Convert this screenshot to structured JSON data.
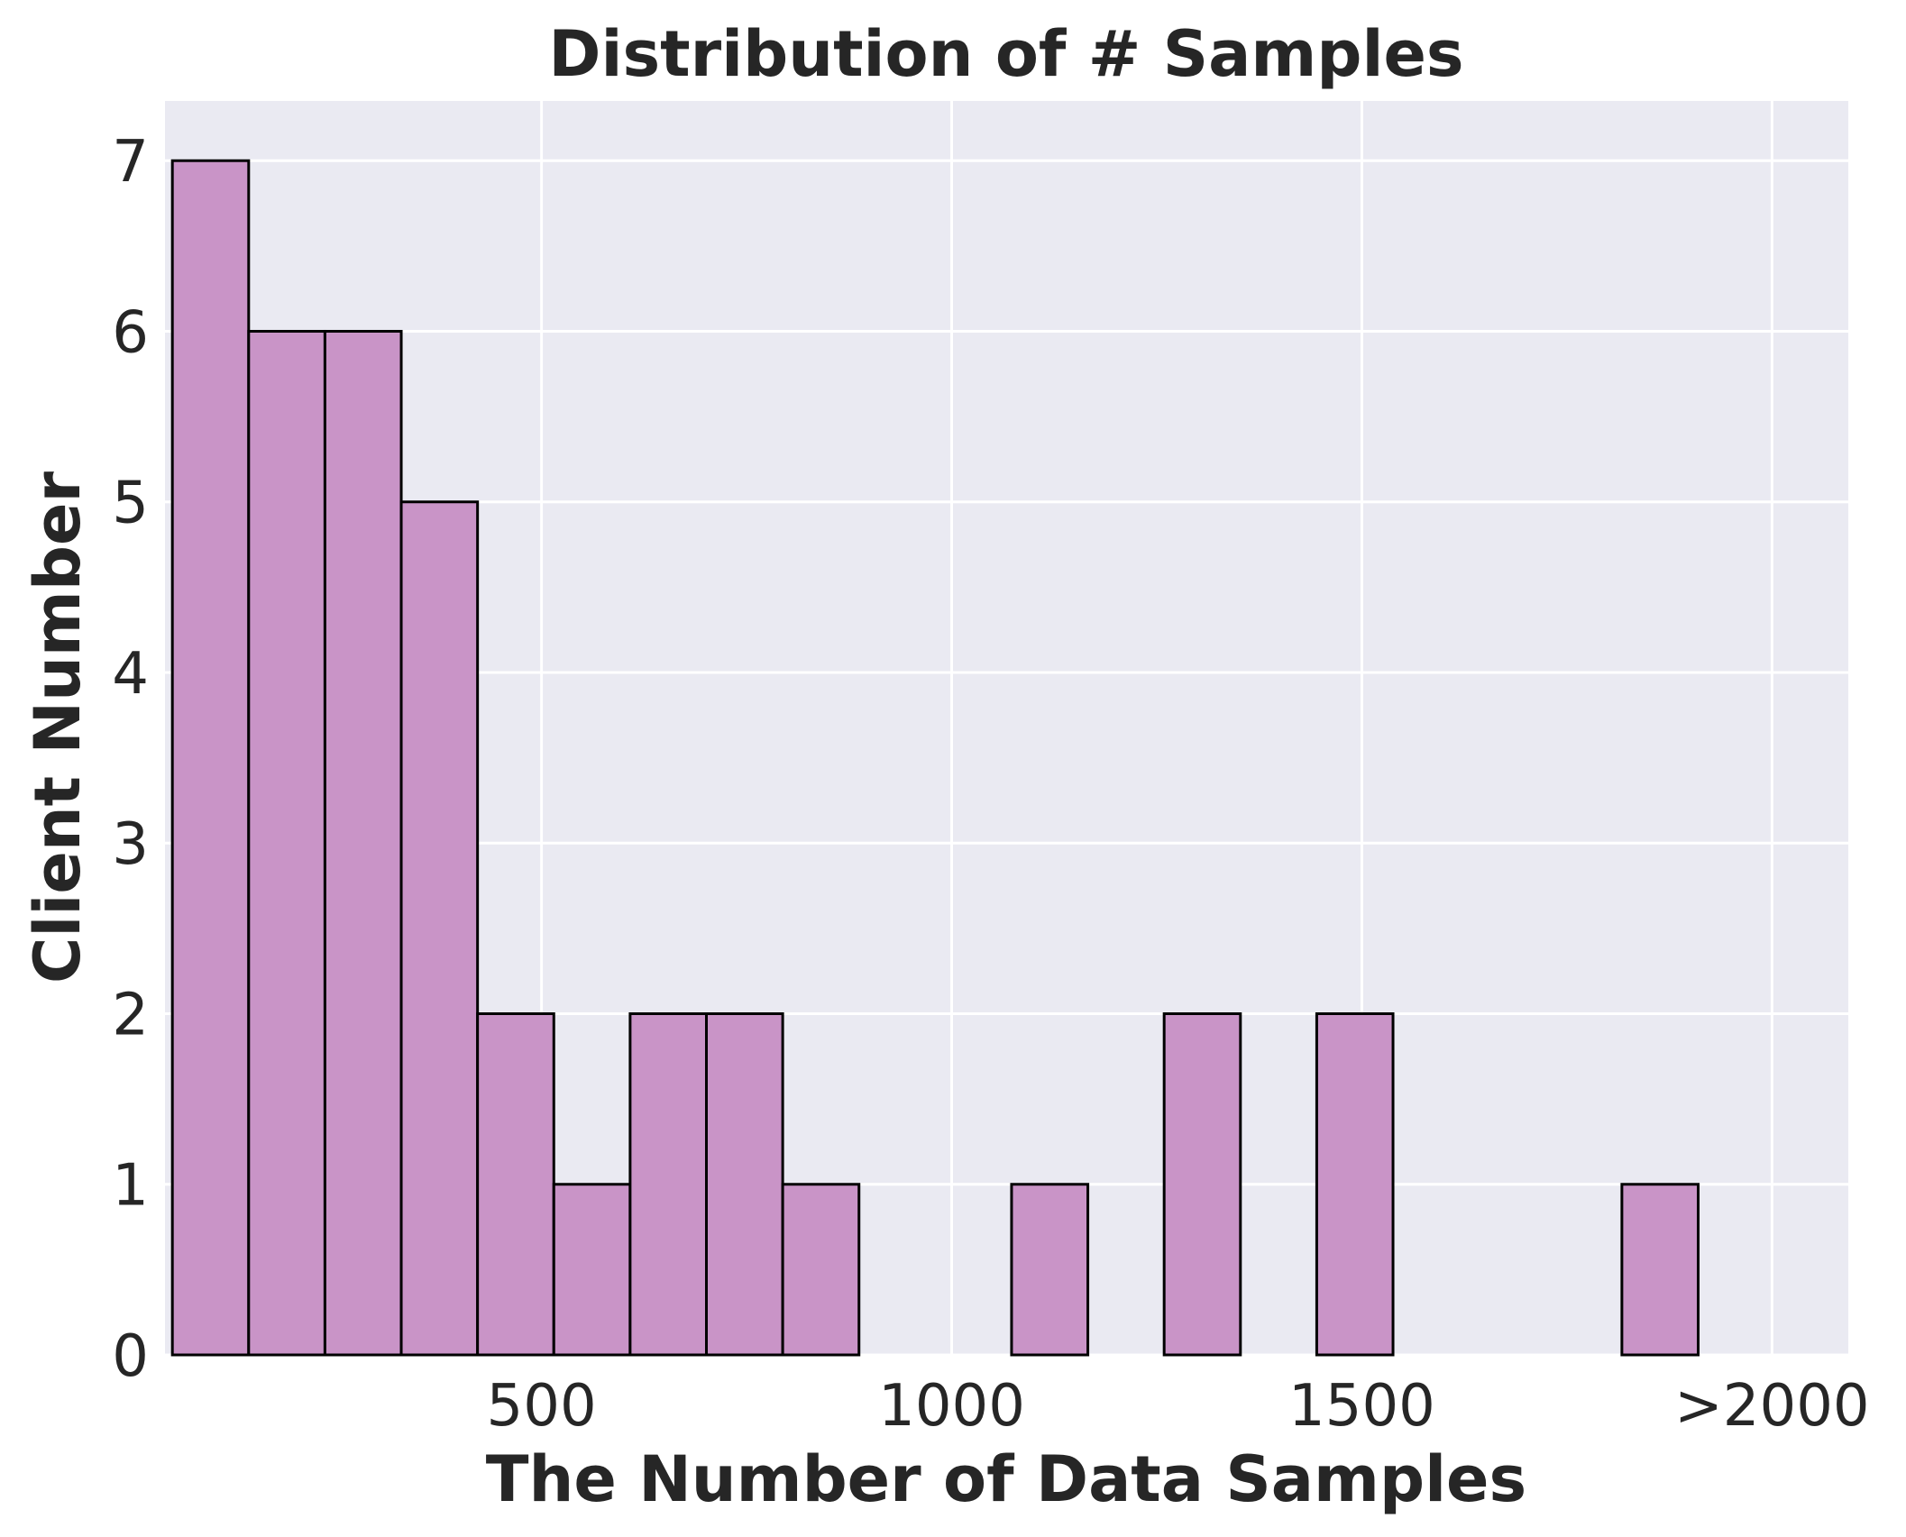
{
  "chart_data": {
    "type": "bar",
    "title": "Distribution of # Samples",
    "xlabel": "The Number of Data Samples",
    "ylabel": "Client Number",
    "bin_width": 93,
    "bins": [
      {
        "start": 50,
        "end": 143,
        "count": 7
      },
      {
        "start": 143,
        "end": 236,
        "count": 6
      },
      {
        "start": 236,
        "end": 329,
        "count": 6
      },
      {
        "start": 329,
        "end": 422,
        "count": 5
      },
      {
        "start": 422,
        "end": 515,
        "count": 2
      },
      {
        "start": 515,
        "end": 608,
        "count": 1
      },
      {
        "start": 608,
        "end": 701,
        "count": 2
      },
      {
        "start": 701,
        "end": 794,
        "count": 2
      },
      {
        "start": 794,
        "end": 887,
        "count": 1
      },
      {
        "start": 887,
        "end": 980,
        "count": 0
      },
      {
        "start": 980,
        "end": 1073,
        "count": 0
      },
      {
        "start": 1073,
        "end": 1166,
        "count": 1
      },
      {
        "start": 1166,
        "end": 1259,
        "count": 0
      },
      {
        "start": 1259,
        "end": 1352,
        "count": 2
      },
      {
        "start": 1352,
        "end": 1445,
        "count": 0
      },
      {
        "start": 1445,
        "end": 1538,
        "count": 2
      },
      {
        "start": 1538,
        "end": 1631,
        "count": 0
      },
      {
        "start": 1631,
        "end": 1724,
        "count": 0
      },
      {
        "start": 1724,
        "end": 1817,
        "count": 0
      },
      {
        "start": 1817,
        "end": 1910,
        "count": 1
      }
    ],
    "xlim": [
      41,
      2093
    ],
    "ylim": [
      0,
      7.35
    ],
    "x_ticks": [
      {
        "value": 500,
        "label": "500"
      },
      {
        "value": 1000,
        "label": "1000"
      },
      {
        "value": 1500,
        "label": "1500"
      },
      {
        "value": 2000,
        "label": ">2000"
      }
    ],
    "y_ticks": [
      {
        "value": 0,
        "label": "0"
      },
      {
        "value": 1,
        "label": "1"
      },
      {
        "value": 2,
        "label": "2"
      },
      {
        "value": 3,
        "label": "3"
      },
      {
        "value": 4,
        "label": "4"
      },
      {
        "value": 5,
        "label": "5"
      },
      {
        "value": 6,
        "label": "6"
      },
      {
        "value": 7,
        "label": "7"
      }
    ],
    "grid": true,
    "colors": {
      "bar_fill": "#c994c7",
      "bar_edge": "#000000",
      "plot_background": "#eaeaf2",
      "grid": "#ffffff"
    }
  }
}
